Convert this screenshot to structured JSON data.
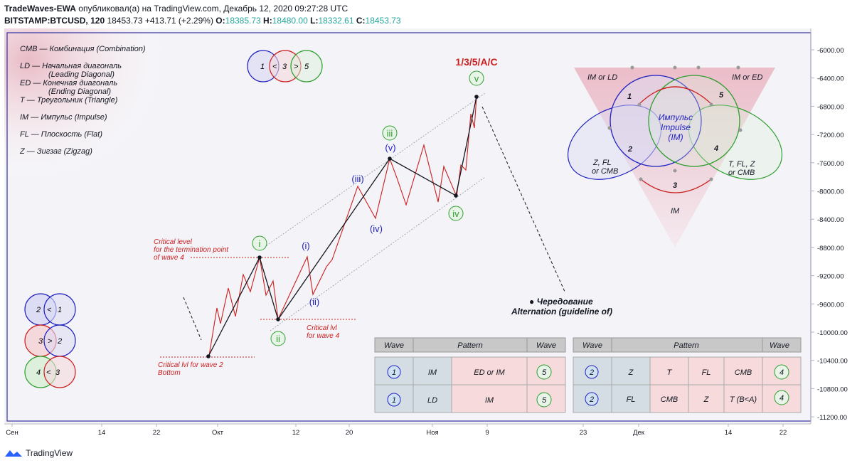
{
  "header": {
    "author": "TradeWaves-EWA",
    "published": "опубликовал(а) на TradingView.com, Декабрь 12, 2020 09:27:28 UTC",
    "symbol": "BITSTAMP:BTCUSD, 120",
    "last": "18453.73",
    "change": "+413.71 (+2.29%)",
    "o_label": "O:",
    "o": "18385.73",
    "h_label": "H:",
    "h": "18480.00",
    "l_label": "L:",
    "l": "18332.61",
    "c_label": "C:",
    "c": "18453.73"
  },
  "footer": {
    "brand": "TradingView"
  },
  "legend": [
    "CMB — Комбинация (Combination)",
    "LD — Начальная диагональ",
    "(Leading Diagonal)",
    "ED — Конечная диагональ",
    "(Ending Diagonal)",
    "T — Треугольник (Triangle)",
    "IM — Импульс (Impulse)",
    "FL — Плоскость (Flat)",
    "Z — Зигзаг (Zigzag)"
  ],
  "annotations": {
    "critical_level_1": "Critical level",
    "critical_level_2": "for the termination point",
    "critical_level_3": "of wave 4",
    "critical_lvl4_1": "Critical lvl",
    "critical_lvl4_2": "for wave 4",
    "critical_lvl2_1": "Critical lvl for wave 2",
    "critical_lvl2_2": "Bottom",
    "alternation_1": "● Чередование",
    "alternation_2": "Alternation (guideline of)",
    "top_label": "1/3/5/A/C"
  },
  "wave_labels": {
    "i": "i",
    "ii": "ii",
    "iii": "iii",
    "iv": "iv",
    "v": "v",
    "sub_i": "(i)",
    "sub_ii": "(ii)",
    "sub_iii": "(iii)",
    "sub_iv": "(iv)",
    "sub_v": "(v)"
  },
  "venn": {
    "top": [
      "1",
      "<",
      "3",
      ">",
      "5"
    ],
    "left1": [
      "2",
      "<",
      "1"
    ],
    "left2": [
      "3",
      ">",
      "2"
    ],
    "left3": [
      "4",
      "<",
      "3"
    ]
  },
  "diagram": {
    "im_or_ld": "IM or LD",
    "im_or_ed": "IM or ED",
    "n1": "1",
    "n2": "2",
    "n3": "3",
    "n4": "4",
    "n5": "5",
    "center_1": "Импульс",
    "center_2": "Impulse",
    "center_3": "(IM)",
    "zfl_1": "Z, FL",
    "zfl_2": "or CMB",
    "tflz_1": "T, FL, Z",
    "tflz_2": "or CMB",
    "bottom": "IM"
  },
  "table1": {
    "headers": [
      "Wave",
      "Pattern",
      "Wave"
    ],
    "rows": [
      [
        "1",
        "IM",
        "ED or IM",
        "5"
      ],
      [
        "1",
        "LD",
        "IM",
        "5"
      ]
    ]
  },
  "table2": {
    "headers": [
      "Wave",
      "Pattern",
      "Wave"
    ],
    "rows": [
      [
        "2",
        "Z",
        "T",
        "FL",
        "CMB",
        "4"
      ],
      [
        "2",
        "FL",
        "CMB",
        "Z",
        "T (B<A)",
        "4"
      ]
    ]
  },
  "axes": {
    "y_ticks": [
      "6000.00",
      "6400.00",
      "6800.00",
      "7200.00",
      "7600.00",
      "8000.00",
      "8400.00",
      "8800.00",
      "9200.00",
      "9600.00",
      "10000.00",
      "10400.00",
      "10800.00",
      "11200.00"
    ],
    "x_ticks": [
      "Сен",
      "14",
      "22",
      "Окт",
      "12",
      "20",
      "Ноя",
      "9",
      "23",
      "Дек",
      "14",
      "22"
    ]
  },
  "colors": {
    "red": "#cc1e1e",
    "blue": "#2020c0",
    "green": "#2e9e2e",
    "black": "#131722",
    "frame": "#3030a0"
  },
  "chart_data": {
    "type": "line",
    "y_axis_inverted": true,
    "ylim": [
      11400,
      5800
    ],
    "y_ticks": [
      6000,
      6400,
      6800,
      7200,
      7600,
      8000,
      8400,
      8800,
      9200,
      9600,
      10000,
      10400,
      10800,
      11200
    ],
    "x_tick_labels": [
      "Сен",
      "14",
      "22",
      "Окт",
      "12",
      "20",
      "Ноя",
      "9",
      "23",
      "Дек",
      "14",
      "22"
    ],
    "series": []
  }
}
